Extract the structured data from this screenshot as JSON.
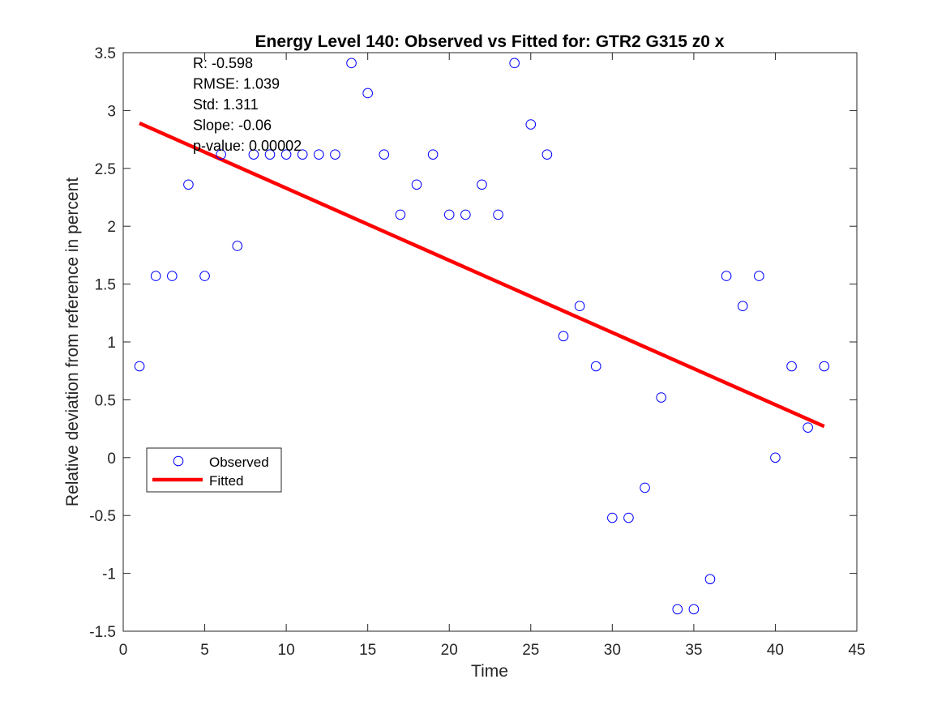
{
  "chart_data": {
    "type": "scatter",
    "title": "Energy Level 140: Observed vs Fitted for: GTR2 G315 z0 x",
    "xlabel": "Time",
    "ylabel": "Relative deviation from reference in percent",
    "xlim": [
      0,
      45
    ],
    "ylim": [
      -1.5,
      3.5
    ],
    "xticks": [
      "0",
      "5",
      "10",
      "15",
      "20",
      "25",
      "30",
      "35",
      "40",
      "45"
    ],
    "yticks": [
      "-1.5",
      "-1",
      "-0.5",
      "0",
      "0.5",
      "1",
      "1.5",
      "2",
      "2.5",
      "3",
      "3.5"
    ],
    "grid": false,
    "legend_position": "lower-left",
    "series": [
      {
        "name": "Observed",
        "marker": "circle",
        "color": "#0000ff",
        "x": [
          1,
          2,
          3,
          4,
          5,
          6,
          7,
          8,
          9,
          10,
          11,
          12,
          13,
          14,
          15,
          16,
          17,
          18,
          19,
          20,
          21,
          22,
          23,
          24,
          25,
          26,
          27,
          28,
          29,
          30,
          31,
          32,
          33,
          34,
          35,
          36,
          37,
          38,
          39,
          40,
          41,
          42,
          43
        ],
        "y": [
          0.79,
          1.57,
          1.57,
          2.36,
          1.57,
          2.62,
          1.83,
          2.62,
          2.62,
          2.62,
          2.62,
          2.62,
          2.62,
          3.41,
          3.15,
          2.62,
          2.1,
          2.36,
          2.62,
          2.1,
          2.1,
          2.36,
          2.1,
          3.41,
          2.88,
          2.62,
          1.05,
          1.31,
          0.79,
          -0.52,
          -0.52,
          -0.26,
          0.52,
          -1.31,
          -1.31,
          -1.05,
          1.57,
          1.31,
          1.57,
          0.0,
          0.79,
          0.26,
          0.79
        ]
      },
      {
        "name": "Fitted",
        "type": "line",
        "color": "#ff0000",
        "x": [
          1,
          43
        ],
        "y": [
          2.89,
          0.27
        ]
      }
    ],
    "annotations": [
      "R: -0.598",
      "RMSE: 1.039",
      "Std: 1.311",
      "Slope: -0.06",
      "p-value: 0.00002"
    ]
  }
}
